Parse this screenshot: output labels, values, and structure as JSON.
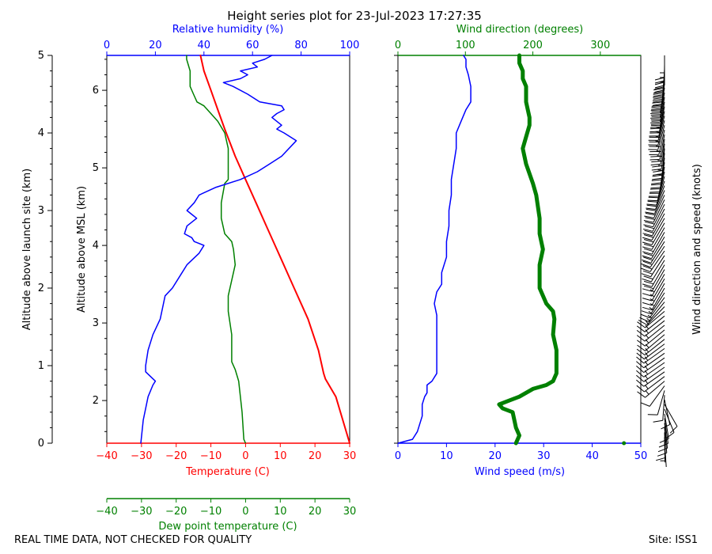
{
  "title": "Height series plot for 23-Jul-2023 17:27:35",
  "footer": {
    "left": "REAL TIME DATA, NOT CHECKED FOR QUALITY",
    "right": "Site: ISS1"
  },
  "colors": {
    "temperature": "#ff0000",
    "dewpoint": "#008000",
    "humidity": "#0000ff",
    "wind_speed": "#0000ff",
    "wind_dir": "#008000",
    "barbs": "#000000",
    "axis": "#000000"
  },
  "chart_data": [
    {
      "type": "line",
      "panel": "thermo",
      "y_axes": {
        "launch_label": "Altitude above launch site (km)",
        "launch_ticks": [
          "0",
          "1",
          "2",
          "3",
          "4",
          "5"
        ],
        "msl_label": "Altitude above MSL (km)",
        "msl_ticks": [
          "2",
          "3",
          "4",
          "5",
          "6"
        ],
        "ylim_km_launch": [
          0,
          5
        ],
        "msl_offset_km": 1.45
      },
      "axes": {
        "temperature": {
          "label": "Temperature (C)",
          "xlim": [
            -40,
            30
          ],
          "ticks": [
            "−40",
            "−30",
            "−20",
            "−10",
            "0",
            "10",
            "20",
            "30"
          ]
        },
        "humidity": {
          "label": "Relative humidity (%)",
          "xlim": [
            0,
            100
          ],
          "ticks": [
            "0",
            "20",
            "40",
            "60",
            "80",
            "100"
          ]
        },
        "dewpoint": {
          "label": "Dew point temperature (C)",
          "xlim": [
            -40,
            30
          ],
          "ticks": [
            "−40",
            "−30",
            "−20",
            "−10",
            "0",
            "10",
            "20",
            "30"
          ]
        }
      },
      "series": [
        {
          "name": "Temperature",
          "axis": "temperature",
          "points": [
            [
              30,
              0
            ],
            [
              26,
              0.6
            ],
            [
              23,
              0.83
            ],
            [
              22.5,
              0.9
            ],
            [
              21,
              1.2
            ],
            [
              18,
              1.6
            ],
            [
              14,
              2.0
            ],
            [
              10,
              2.4
            ],
            [
              9,
              2.5
            ],
            [
              6,
              2.8
            ],
            [
              3,
              3.1
            ],
            [
              0,
              3.4
            ],
            [
              -3,
              3.7
            ],
            [
              -6,
              4.05
            ],
            [
              -8,
              4.3
            ],
            [
              -10,
              4.55
            ],
            [
              -12,
              4.8
            ],
            [
              -13,
              5.0
            ]
          ]
        },
        {
          "name": "Dew point",
          "axis": "dewpoint",
          "points": [
            [
              0,
              0
            ],
            [
              -0.5,
              0.05
            ],
            [
              -1,
              0.4
            ],
            [
              -2,
              0.8
            ],
            [
              -3,
              0.95
            ],
            [
              -4,
              1.05
            ],
            [
              -4,
              1.4
            ],
            [
              -5,
              1.7
            ],
            [
              -5,
              1.9
            ],
            [
              -4,
              2.1
            ],
            [
              -3,
              2.3
            ],
            [
              -3.5,
              2.5
            ],
            [
              -4,
              2.6
            ],
            [
              -6,
              2.7
            ],
            [
              -7,
              2.9
            ],
            [
              -7,
              3.1
            ],
            [
              -6,
              3.35
            ],
            [
              -5,
              3.4
            ],
            [
              -5,
              3.6
            ],
            [
              -5,
              3.8
            ],
            [
              -6,
              4.0
            ],
            [
              -8,
              4.15
            ],
            [
              -10,
              4.25
            ],
            [
              -12,
              4.35
            ],
            [
              -14,
              4.4
            ],
            [
              -15,
              4.5
            ],
            [
              -16,
              4.6
            ],
            [
              -16,
              4.8
            ],
            [
              -17,
              4.95
            ],
            [
              -17,
              5.0
            ]
          ]
        },
        {
          "name": "Relative humidity",
          "axis": "humidity",
          "points": [
            [
              14,
              0
            ],
            [
              15,
              0.3
            ],
            [
              17,
              0.6
            ],
            [
              19,
              0.75
            ],
            [
              20,
              0.8
            ],
            [
              16,
              0.92
            ],
            [
              16,
              1.0
            ],
            [
              17,
              1.2
            ],
            [
              19,
              1.4
            ],
            [
              22,
              1.6
            ],
            [
              24,
              1.9
            ],
            [
              27,
              2.0
            ],
            [
              30,
              2.15
            ],
            [
              33,
              2.3
            ],
            [
              38,
              2.45
            ],
            [
              40,
              2.55
            ],
            [
              36,
              2.6
            ],
            [
              35,
              2.65
            ],
            [
              32,
              2.7
            ],
            [
              33,
              2.8
            ],
            [
              37,
              2.9
            ],
            [
              35,
              2.95
            ],
            [
              33,
              3.0
            ],
            [
              36,
              3.1
            ],
            [
              38,
              3.2
            ],
            [
              45,
              3.3
            ],
            [
              55,
              3.4
            ],
            [
              62,
              3.5
            ],
            [
              67,
              3.6
            ],
            [
              72,
              3.7
            ],
            [
              78,
              3.9
            ],
            [
              73,
              4.0
            ],
            [
              70,
              4.05
            ],
            [
              72,
              4.1
            ],
            [
              68,
              4.2
            ],
            [
              70,
              4.25
            ],
            [
              73,
              4.3
            ],
            [
              72,
              4.35
            ],
            [
              63,
              4.4
            ],
            [
              58,
              4.5
            ],
            [
              52,
              4.6
            ],
            [
              48,
              4.65
            ],
            [
              55,
              4.7
            ],
            [
              58,
              4.75
            ],
            [
              55,
              4.8
            ],
            [
              62,
              4.85
            ],
            [
              60,
              4.9
            ],
            [
              65,
              4.95
            ],
            [
              68,
              5.0
            ]
          ]
        }
      ]
    },
    {
      "type": "line",
      "panel": "wind",
      "axes": {
        "wind_speed": {
          "label": "Wind speed (m/s)",
          "xlim": [
            0,
            50
          ],
          "ticks": [
            "0",
            "10",
            "20",
            "30",
            "40",
            "50"
          ]
        },
        "wind_dir": {
          "label": "Wind direction (degrees)",
          "xlim": [
            0,
            360
          ],
          "ticks": [
            "0",
            "100",
            "200",
            "300"
          ]
        }
      },
      "series": [
        {
          "name": "Wind speed",
          "axis": "wind_speed",
          "points": [
            [
              0,
              0
            ],
            [
              3,
              0.05
            ],
            [
              4,
              0.15
            ],
            [
              5,
              0.35
            ],
            [
              5,
              0.5
            ],
            [
              5.5,
              0.6
            ],
            [
              6,
              0.65
            ],
            [
              6,
              0.75
            ],
            [
              7,
              0.8
            ],
            [
              8,
              0.9
            ],
            [
              8,
              1.0
            ],
            [
              8,
              1.15
            ],
            [
              8,
              1.3
            ],
            [
              8,
              1.5
            ],
            [
              8,
              1.65
            ],
            [
              7.5,
              1.8
            ],
            [
              8,
              1.95
            ],
            [
              9,
              2.05
            ],
            [
              9,
              2.2
            ],
            [
              10,
              2.4
            ],
            [
              10,
              2.6
            ],
            [
              10.5,
              2.8
            ],
            [
              10.5,
              3.0
            ],
            [
              11,
              3.2
            ],
            [
              11,
              3.4
            ],
            [
              11.5,
              3.6
            ],
            [
              12,
              3.8
            ],
            [
              12,
              4.0
            ],
            [
              13,
              4.15
            ],
            [
              14,
              4.3
            ],
            [
              15,
              4.4
            ],
            [
              15,
              4.6
            ],
            [
              14.5,
              4.75
            ],
            [
              14,
              4.85
            ],
            [
              14,
              4.95
            ],
            [
              13.5,
              5.0
            ]
          ]
        },
        {
          "name": "Wind direction",
          "axis": "wind_dir",
          "points": [
            [
              175,
              0
            ],
            [
              180,
              0.1
            ],
            [
              175,
              0.2
            ],
            [
              170,
              0.4
            ],
            [
              155,
              0.45
            ],
            [
              150,
              0.5
            ],
            [
              165,
              0.55
            ],
            [
              180,
              0.6
            ],
            [
              200,
              0.7
            ],
            [
              220,
              0.75
            ],
            [
              230,
              0.8
            ],
            [
              235,
              0.9
            ],
            [
              235,
              1.2
            ],
            [
              230,
              1.4
            ],
            [
              232,
              1.6
            ],
            [
              230,
              1.7
            ],
            [
              220,
              1.8
            ],
            [
              210,
              2.0
            ],
            [
              210,
              2.3
            ],
            [
              215,
              2.5
            ],
            [
              210,
              2.7
            ],
            [
              210,
              2.9
            ],
            [
              205,
              3.2
            ],
            [
              200,
              3.35
            ],
            [
              190,
              3.6
            ],
            [
              185,
              3.8
            ],
            [
              190,
              3.95
            ],
            [
              195,
              4.1
            ],
            [
              195,
              4.2
            ],
            [
              190,
              4.4
            ],
            [
              190,
              4.6
            ],
            [
              185,
              4.7
            ],
            [
              185,
              4.8
            ],
            [
              180,
              4.9
            ],
            [
              180,
              5.0
            ]
          ]
        }
      ],
      "extra_points": [
        {
          "name": "Wind direction outlier",
          "axis": "wind_dir",
          "x": 335,
          "y": 0.0
        }
      ]
    }
  ],
  "barbs": {
    "label": "Wind direction and speed (knots)"
  }
}
